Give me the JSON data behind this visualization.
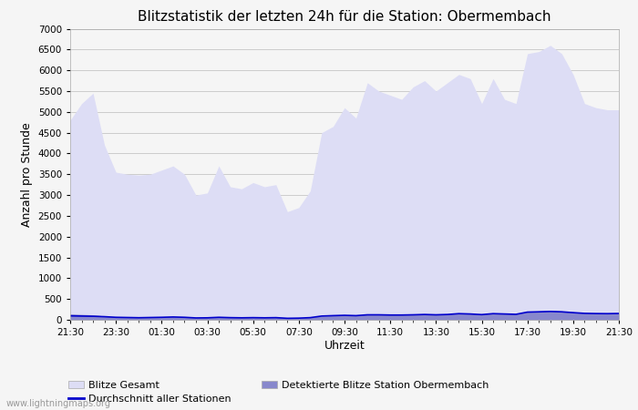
{
  "title": "Blitzstatistik der letzten 24h für die Station: Obermembach",
  "xlabel": "Uhrzeit",
  "ylabel": "Anzahl pro Stunde",
  "ylim": [
    0,
    7000
  ],
  "yticks": [
    0,
    500,
    1000,
    1500,
    2000,
    2500,
    3000,
    3500,
    4000,
    4500,
    5000,
    5500,
    6000,
    6500,
    7000
  ],
  "xtick_labels": [
    "21:30",
    "23:30",
    "01:30",
    "03:30",
    "05:30",
    "07:30",
    "09:30",
    "11:30",
    "13:30",
    "15:30",
    "17:30",
    "19:30",
    "21:30"
  ],
  "background_color": "#f5f5f5",
  "plot_bg_color": "#f5f5f5",
  "grid_color": "#cccccc",
  "title_fontsize": 11,
  "color_blitze_gesamt": "#ddddf5",
  "color_detektiert": "#8888cc",
  "color_durchschnitt": "#0000cc",
  "x_values": [
    0,
    1,
    2,
    3,
    4,
    5,
    6,
    7,
    8,
    9,
    10,
    11,
    12,
    13,
    14,
    15,
    16,
    17,
    18,
    19,
    20,
    21,
    22,
    23,
    24,
    25,
    26,
    27,
    28,
    29,
    30,
    31,
    32,
    33,
    34,
    35,
    36,
    37,
    38,
    39,
    40,
    41,
    42,
    43,
    44,
    45,
    46,
    47,
    48
  ],
  "blitze_gesamt": [
    4800,
    5200,
    5450,
    4200,
    3550,
    3500,
    3480,
    3500,
    3600,
    3700,
    3500,
    3000,
    3050,
    3700,
    3200,
    3150,
    3300,
    3200,
    3250,
    2600,
    2700,
    3100,
    4500,
    4650,
    5100,
    4850,
    5700,
    5500,
    5400,
    5300,
    5600,
    5750,
    5500,
    5700,
    5900,
    5800,
    5200,
    5800,
    5300,
    5200,
    6400,
    6450,
    6600,
    6400,
    5900,
    5200,
    5100,
    5050,
    5050
  ],
  "detektiert": [
    140,
    130,
    120,
    90,
    70,
    60,
    55,
    60,
    70,
    80,
    70,
    50,
    55,
    70,
    60,
    55,
    60,
    55,
    60,
    40,
    45,
    60,
    90,
    100,
    110,
    100,
    130,
    130,
    120,
    120,
    130,
    140,
    130,
    140,
    160,
    150,
    130,
    160,
    150,
    140,
    200,
    210,
    220,
    210,
    190,
    170,
    165,
    160,
    165
  ],
  "durchschnitt": [
    95,
    90,
    85,
    75,
    60,
    55,
    50,
    55,
    60,
    68,
    60,
    45,
    48,
    60,
    52,
    48,
    52,
    48,
    52,
    36,
    40,
    52,
    90,
    100,
    108,
    100,
    120,
    120,
    115,
    115,
    120,
    128,
    120,
    128,
    148,
    140,
    125,
    148,
    140,
    132,
    185,
    192,
    200,
    192,
    172,
    155,
    150,
    148,
    152
  ],
  "legend_blitze_gesamt": "Blitze Gesamt",
  "legend_detektiert": "Detektierte Blitze Station Obermembach",
  "legend_durchschnitt": "Durchschnitt aller Stationen",
  "watermark": "www.lightningmaps.org"
}
